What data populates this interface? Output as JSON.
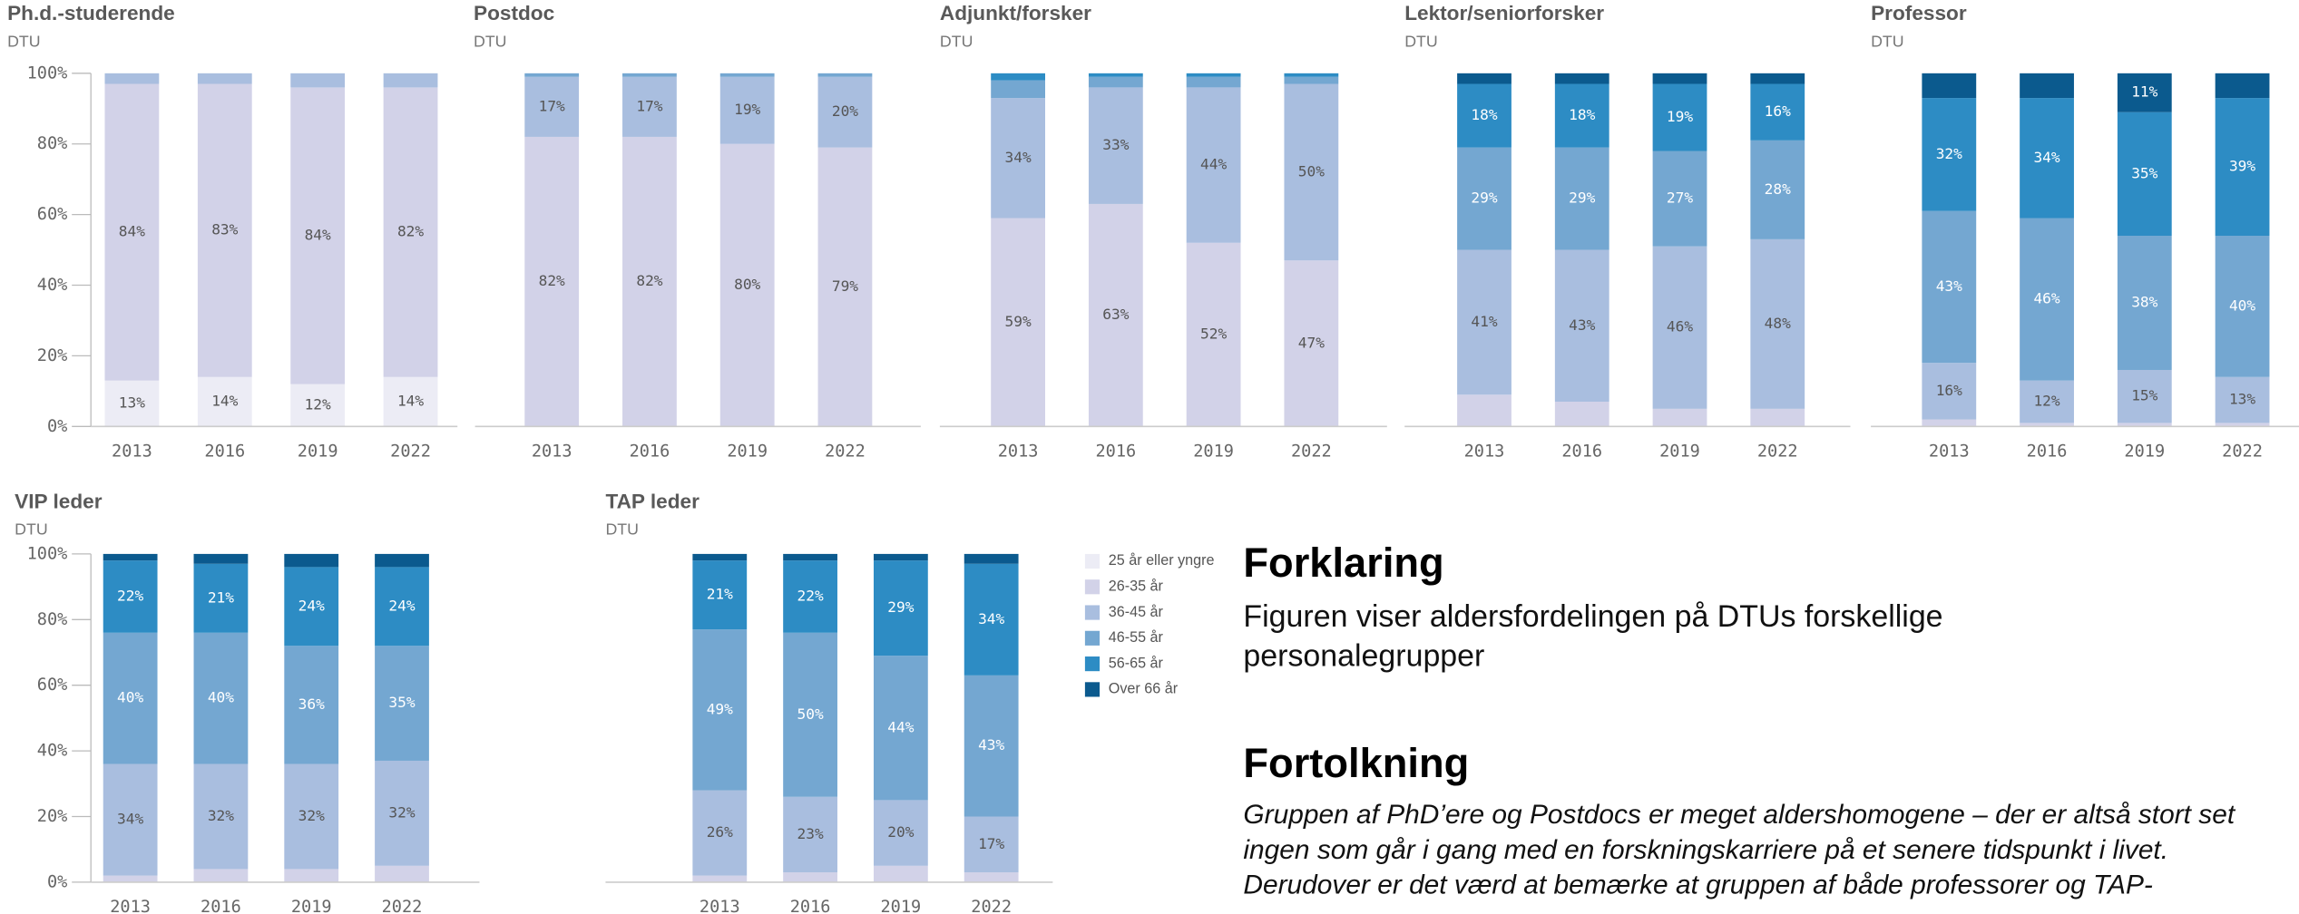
{
  "chart_data": [
    {
      "type": "bar",
      "stacked": true,
      "title": "Ph.d.-studerende",
      "subtitle": "DTU",
      "categories": [
        "2013",
        "2016",
        "2019",
        "2022"
      ],
      "ylim": [
        0,
        100
      ],
      "yticks": [
        {
          "value": 0,
          "label": "0%"
        },
        {
          "value": 20,
          "label": "20%"
        },
        {
          "value": 40,
          "label": "40%"
        },
        {
          "value": 60,
          "label": "60%"
        },
        {
          "value": 80,
          "label": "80%"
        },
        {
          "value": 100,
          "label": "100%"
        }
      ],
      "series": [
        {
          "values": [
            13,
            14,
            12,
            14
          ],
          "value_labels": [
            "13%",
            "14%",
            "12%",
            "14%"
          ]
        },
        {
          "values": [
            84,
            83,
            84,
            82
          ],
          "value_labels": [
            "84%",
            "83%",
            "84%",
            "82%"
          ]
        },
        {
          "values": [
            3,
            3,
            4,
            4
          ]
        },
        {
          "values": [
            0,
            0,
            0,
            0
          ]
        },
        {
          "values": [
            0,
            0,
            0,
            0
          ]
        },
        {
          "values": [
            0,
            0,
            0,
            0
          ]
        }
      ]
    },
    {
      "type": "bar",
      "stacked": true,
      "title": "Postdoc",
      "subtitle": "DTU",
      "categories": [
        "2013",
        "2016",
        "2019",
        "2022"
      ],
      "ylim": [
        0,
        100
      ],
      "series": [
        {
          "values": [
            0,
            0,
            0,
            0
          ]
        },
        {
          "values": [
            82,
            82,
            80,
            79
          ],
          "value_labels": [
            "82%",
            "82%",
            "80%",
            "79%"
          ]
        },
        {
          "values": [
            17,
            17,
            19,
            20
          ],
          "value_labels": [
            "17%",
            "17%",
            "19%",
            "20%"
          ]
        },
        {
          "values": [
            1,
            1,
            1,
            1
          ]
        },
        {
          "values": [
            0,
            0,
            0,
            0
          ]
        },
        {
          "values": [
            0,
            0,
            0,
            0
          ]
        }
      ]
    },
    {
      "type": "bar",
      "stacked": true,
      "title": "Adjunkt/forsker",
      "subtitle": "DTU",
      "categories": [
        "2013",
        "2016",
        "2019",
        "2022"
      ],
      "ylim": [
        0,
        100
      ],
      "series": [
        {
          "values": [
            0,
            0,
            0,
            0
          ]
        },
        {
          "values": [
            59,
            63,
            52,
            47
          ],
          "value_labels": [
            "59%",
            "63%",
            "52%",
            "47%"
          ]
        },
        {
          "values": [
            34,
            33,
            44,
            50
          ],
          "value_labels": [
            "34%",
            "33%",
            "44%",
            "50%"
          ]
        },
        {
          "values": [
            5,
            3,
            3,
            2
          ]
        },
        {
          "values": [
            2,
            1,
            1,
            1
          ]
        },
        {
          "values": [
            0,
            0,
            0,
            0
          ]
        }
      ]
    },
    {
      "type": "bar",
      "stacked": true,
      "title": "Lektor/seniorforsker",
      "subtitle": "DTU",
      "categories": [
        "2013",
        "2016",
        "2019",
        "2022"
      ],
      "ylim": [
        0,
        100
      ],
      "series": [
        {
          "values": [
            0,
            0,
            0,
            0
          ]
        },
        {
          "values": [
            9,
            7,
            5,
            5
          ]
        },
        {
          "values": [
            41,
            43,
            46,
            48
          ],
          "value_labels": [
            "41%",
            "43%",
            "46%",
            "48%"
          ]
        },
        {
          "values": [
            29,
            29,
            27,
            28
          ],
          "value_labels": [
            "29%",
            "29%",
            "27%",
            "28%"
          ]
        },
        {
          "values": [
            18,
            18,
            19,
            16
          ],
          "value_labels": [
            "18%",
            "18%",
            "19%",
            "16%"
          ]
        },
        {
          "values": [
            3,
            3,
            3,
            3
          ]
        }
      ]
    },
    {
      "type": "bar",
      "stacked": true,
      "title": "Professor",
      "subtitle": "DTU",
      "categories": [
        "2013",
        "2016",
        "2019",
        "2022"
      ],
      "ylim": [
        0,
        100
      ],
      "series": [
        {
          "values": [
            0,
            0,
            0,
            0
          ]
        },
        {
          "values": [
            2,
            1,
            1,
            1
          ]
        },
        {
          "values": [
            16,
            12,
            15,
            13
          ],
          "value_labels": [
            "16%",
            "12%",
            "15%",
            "13%"
          ]
        },
        {
          "values": [
            43,
            46,
            38,
            40
          ],
          "value_labels": [
            "43%",
            "46%",
            "38%",
            "40%"
          ]
        },
        {
          "values": [
            32,
            34,
            35,
            39
          ],
          "value_labels": [
            "32%",
            "34%",
            "35%",
            "39%"
          ]
        },
        {
          "values": [
            7,
            7,
            11,
            7
          ],
          "value_labels": [
            null,
            null,
            "11%",
            null
          ]
        }
      ]
    },
    {
      "type": "bar",
      "stacked": true,
      "title": "VIP leder",
      "subtitle": "DTU",
      "categories": [
        "2013",
        "2016",
        "2019",
        "2022"
      ],
      "ylim": [
        0,
        100
      ],
      "yticks": [
        {
          "value": 0,
          "label": "0%"
        },
        {
          "value": 20,
          "label": "20%"
        },
        {
          "value": 40,
          "label": "40%"
        },
        {
          "value": 60,
          "label": "60%"
        },
        {
          "value": 80,
          "label": "80%"
        },
        {
          "value": 100,
          "label": "100%"
        }
      ],
      "series": [
        {
          "values": [
            0,
            0,
            0,
            0
          ]
        },
        {
          "values": [
            2,
            4,
            4,
            5
          ]
        },
        {
          "values": [
            34,
            32,
            32,
            32
          ],
          "value_labels": [
            "34%",
            "32%",
            "32%",
            "32%"
          ]
        },
        {
          "values": [
            40,
            40,
            36,
            35
          ],
          "value_labels": [
            "40%",
            "40%",
            "36%",
            "35%"
          ]
        },
        {
          "values": [
            22,
            21,
            24,
            24
          ],
          "value_labels": [
            "22%",
            "21%",
            "24%",
            "24%"
          ]
        },
        {
          "values": [
            2,
            3,
            4,
            4
          ]
        }
      ]
    },
    {
      "type": "bar",
      "stacked": true,
      "title": "TAP leder",
      "subtitle": "DTU",
      "categories": [
        "2013",
        "2016",
        "2019",
        "2022"
      ],
      "ylim": [
        0,
        100
      ],
      "series": [
        {
          "values": [
            0,
            0,
            0,
            0
          ]
        },
        {
          "values": [
            2,
            3,
            5,
            3
          ]
        },
        {
          "values": [
            26,
            23,
            20,
            17
          ],
          "value_labels": [
            "26%",
            "23%",
            "20%",
            "17%"
          ]
        },
        {
          "values": [
            49,
            50,
            44,
            43
          ],
          "value_labels": [
            "49%",
            "50%",
            "44%",
            "43%"
          ]
        },
        {
          "values": [
            21,
            22,
            29,
            34
          ],
          "value_labels": [
            "21%",
            "22%",
            "29%",
            "34%"
          ]
        },
        {
          "values": [
            2,
            2,
            2,
            3
          ]
        }
      ]
    }
  ],
  "legend": [
    {
      "name": "25 år eller yngre",
      "color": "#ececf5"
    },
    {
      "name": "26-35 år",
      "color": "#d2d2e8"
    },
    {
      "name": "36-45 år",
      "color": "#a9bedf"
    },
    {
      "name": "46-55 år",
      "color": "#74a7d1"
    },
    {
      "name": "56-65 år",
      "color": "#2d8cc4"
    },
    {
      "name": "Over 66 år",
      "color": "#0b5a8e"
    }
  ],
  "explanation": {
    "heading": "Forklaring",
    "lines": [
      "Figuren viser aldersfordelingen på DTUs forskellige",
      "personalegrupper"
    ]
  },
  "interpretation": {
    "heading": "Fortolkning",
    "lines": [
      "Gruppen af PhD’ere og Postdocs er meget aldershomogene – der er altså stort set",
      "ingen som går i gang med en forskningskarriere på et senere tidspunkt i livet.",
      "Derudover er det værd at bemærke at gruppen af både professorer og TAP-"
    ]
  }
}
